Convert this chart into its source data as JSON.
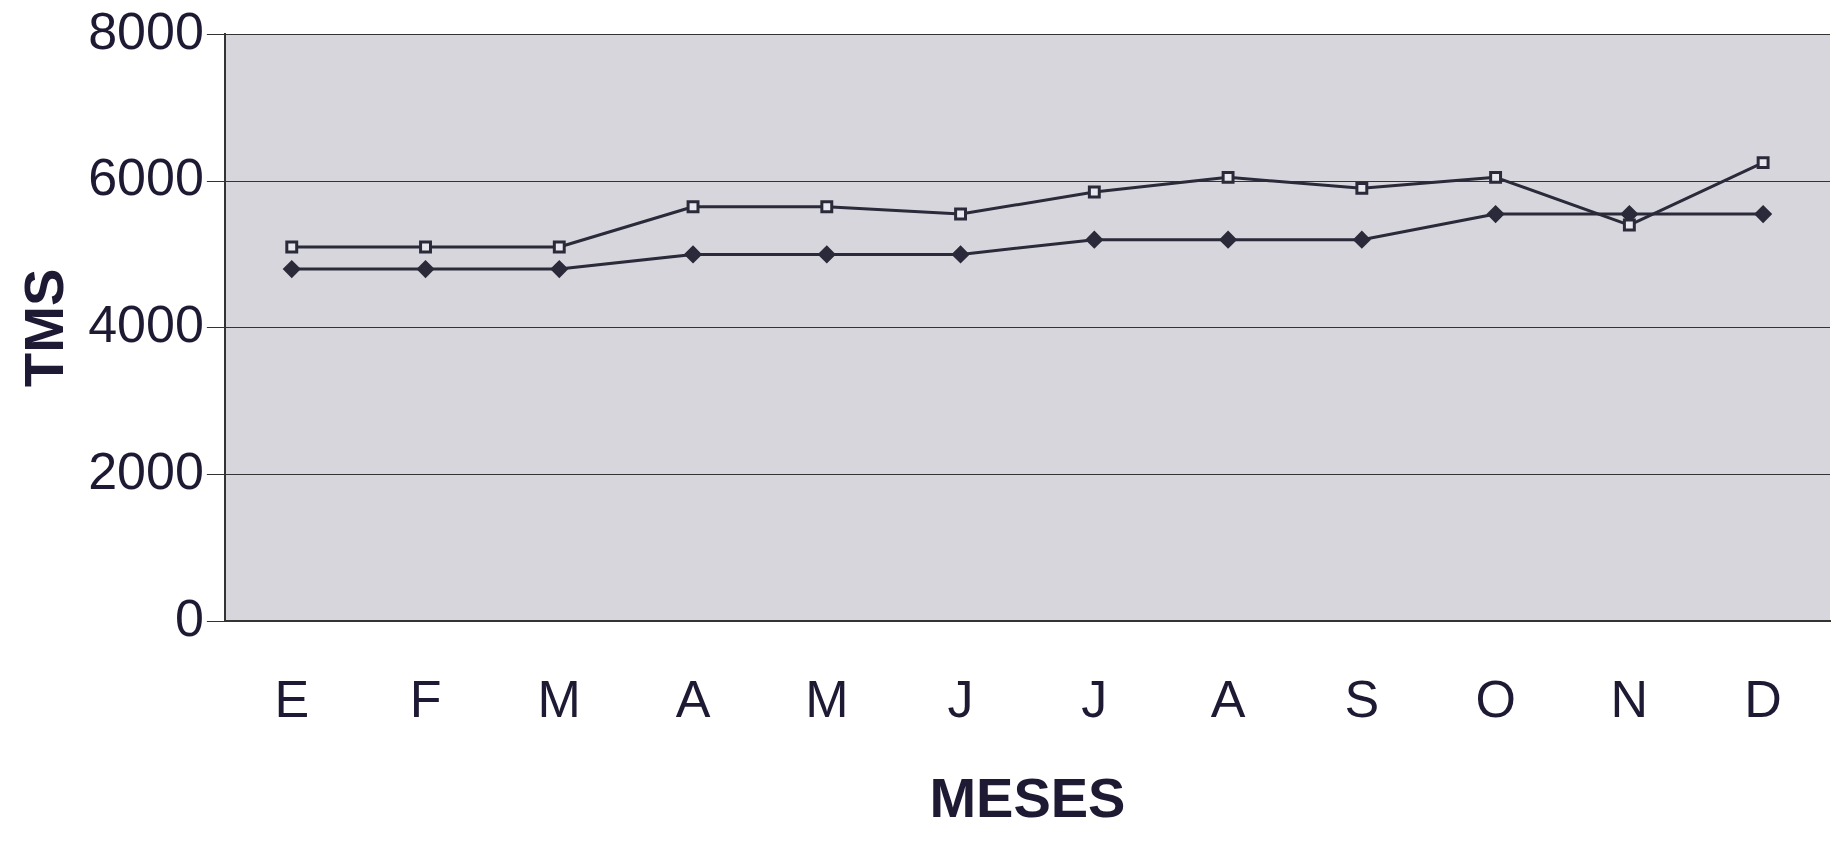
{
  "chart_data": {
    "type": "line",
    "xlabel": "MESES",
    "ylabel": "TMS",
    "categories": [
      "E",
      "F",
      "M",
      "A",
      "M",
      "J",
      "J",
      "A",
      "S",
      "O",
      "N",
      "D"
    ],
    "series": [
      {
        "color": "#2a2a3a",
        "marker": "square",
        "values": [
          5100,
          5100,
          5100,
          5650,
          5650,
          5550,
          5850,
          6050,
          5900,
          6050,
          5400,
          6250
        ]
      },
      {
        "color": "#2a2a3a",
        "marker": "diamond",
        "values": [
          4800,
          4800,
          4800,
          5000,
          5000,
          5000,
          5200,
          5200,
          5200,
          5550,
          5550,
          5550
        ]
      }
    ],
    "ylim": [
      0,
      8000
    ],
    "yticks": [
      0,
      2000,
      4000,
      6000,
      8000
    ],
    "grid": "y",
    "legend": false,
    "line_style": "solid"
  }
}
